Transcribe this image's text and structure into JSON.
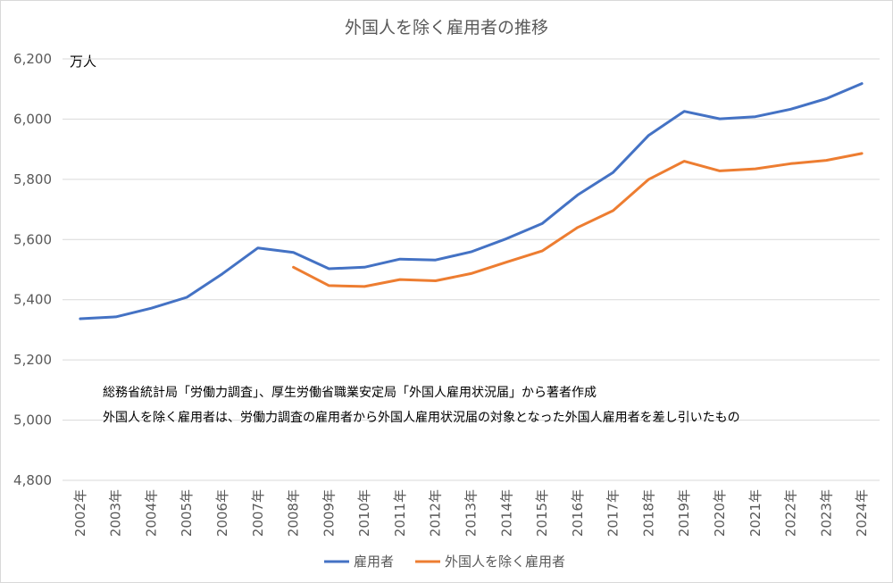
{
  "chart_data": {
    "type": "line",
    "title": "外国人を除く雇用者の推移",
    "unit_label": "万人",
    "ylim": [
      4800,
      6200
    ],
    "yticks": [
      4800,
      5000,
      5200,
      5400,
      5600,
      5800,
      6000,
      6200
    ],
    "ytick_labels": [
      "4,800",
      "5,000",
      "5,200",
      "5,400",
      "5,600",
      "5,800",
      "6,000",
      "6,200"
    ],
    "grid": true,
    "categories": [
      "2002年",
      "2003年",
      "2004年",
      "2005年",
      "2006年",
      "2007年",
      "2008年",
      "2009年",
      "2010年",
      "2011年",
      "2012年",
      "2013年",
      "2014年",
      "2015年",
      "2016年",
      "2017年",
      "2018年",
      "2019年",
      "2020年",
      "2021年",
      "2022年",
      "2023年",
      "2024年"
    ],
    "series": [
      {
        "name": "雇用者",
        "color": "#4472c4",
        "values": [
          5337,
          5343,
          5372,
          5408,
          5486,
          5572,
          5557,
          5503,
          5508,
          5535,
          5532,
          5559,
          5603,
          5653,
          5748,
          5823,
          5946,
          6026,
          6001,
          6008,
          6033,
          6068,
          6118
        ]
      },
      {
        "name": "外国人を除く雇用者",
        "color": "#ed7d31",
        "values": [
          null,
          null,
          null,
          null,
          null,
          null,
          5508,
          5447,
          5444,
          5467,
          5463,
          5487,
          5525,
          5562,
          5640,
          5696,
          5800,
          5860,
          5828,
          5835,
          5852,
          5863,
          5886
        ]
      }
    ],
    "annotations": [
      "総務省統計局「労働力調査」、厚生労働省職業安定局「外国人雇用状況届」から著者作成",
      "外国人を除く雇用者は、労働力調査の雇用者から外国人雇用状況届の対象となった外国人雇用者を差し引いたもの"
    ],
    "legend_position": "bottom-center"
  }
}
